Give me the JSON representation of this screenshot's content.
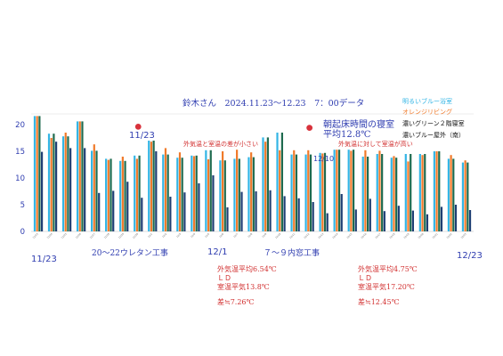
{
  "chart_data": {
    "type": "bar",
    "title": "鈴木さん　2024.11.23～12.23　7：00データ",
    "ylim": [
      0,
      22
    ],
    "yticks": [
      0,
      5,
      10,
      15,
      20
    ],
    "legend": [
      {
        "label": "明るいブルー浴室",
        "color": "#33b5e5"
      },
      {
        "label": "オレンジリビング",
        "color": "#f07a2a"
      },
      {
        "label": "濃いグリーン２階寝室",
        "color": "#1f6b4f"
      },
      {
        "label": "濃いブルー屋外（南）",
        "color": "#1f3f74"
      }
    ],
    "categories": [
      "11/23",
      "11/24",
      "11/25",
      "11/26",
      "11/27",
      "11/28",
      "11/29",
      "11/30",
      "12/1",
      "12/2",
      "12/3",
      "12/4",
      "12/5",
      "12/6",
      "12/7",
      "12/8",
      "12/9",
      "12/10",
      "12/11",
      "12/12",
      "12/13",
      "12/14",
      "12/15",
      "12/16",
      "12/17",
      "12/18",
      "12/19",
      "12/20",
      "12/21",
      "12/22",
      "12/23"
    ],
    "series": [
      {
        "name": "浴室",
        "color": "#33b5e5",
        "values": [
          21.6,
          18.3,
          17.8,
          20.6,
          15.1,
          13.6,
          13.2,
          14.2,
          17.0,
          14.4,
          13.8,
          14.2,
          15.2,
          13.3,
          13.6,
          13.9,
          17.6,
          18.5,
          14.4,
          14.4,
          14.7,
          15.3,
          15.3,
          14.0,
          14.5,
          13.8,
          14.5,
          14.5,
          15.0,
          13.6,
          12.9
        ]
      },
      {
        "name": "リビング",
        "color": "#f07a2a",
        "values": [
          21.6,
          17.5,
          18.5,
          20.6,
          16.3,
          13.4,
          14.0,
          13.6,
          16.8,
          15.6,
          14.8,
          14.1,
          13.5,
          15.0,
          15.3,
          14.8,
          16.8,
          15.2,
          15.2,
          15.2,
          14.6,
          15.3,
          15.1,
          15.2,
          15.1,
          14.1,
          13.1,
          14.3,
          15.0,
          14.3,
          13.3
        ]
      },
      {
        "name": "２階寝室",
        "color": "#1f6b4f",
        "values": [
          21.6,
          18.3,
          17.8,
          20.6,
          15.1,
          13.6,
          13.2,
          14.2,
          17.0,
          14.4,
          13.8,
          14.2,
          15.2,
          13.3,
          13.6,
          13.9,
          17.6,
          18.5,
          14.4,
          14.4,
          14.7,
          15.3,
          15.3,
          14.0,
          14.5,
          13.8,
          14.5,
          14.5,
          15.0,
          13.6,
          12.9
        ]
      },
      {
        "name": "屋外（南）",
        "color": "#1f3f74",
        "values": [
          14.9,
          16.8,
          15.6,
          15.6,
          7.2,
          7.6,
          9.3,
          6.3,
          15.0,
          6.5,
          7.3,
          9.0,
          10.5,
          4.5,
          7.4,
          7.5,
          7.7,
          6.6,
          6.2,
          5.5,
          3.4,
          7.0,
          4.1,
          6.1,
          3.8,
          4.8,
          3.9,
          3.2,
          4.6,
          5.0,
          4.0
        ]
      }
    ],
    "dots": [
      {
        "category": "11/30",
        "value": 19.6
      },
      {
        "category": "12/12",
        "value": 19.4
      }
    ],
    "annotations": {
      "a1123": "11/23",
      "dot1_note": "外気温と室温の差が小さい",
      "d1210": "12/10",
      "dot2_note": "外気温に対して室温が高い",
      "bed_line1": "朝起床時間の寝室",
      "bed_line2": "平均12.8℃",
      "x_start": "11/23",
      "x_mid": "12/1",
      "x_end": "12/23",
      "work1": "20～22ウレタン工事",
      "work2": "７～９内窓工事",
      "stats1_line1": "外気温平均6.54℃",
      "stats1_line2": "ＬＤ",
      "stats1_line3": "室温平気13.8℃",
      "stats1_line4": "差≒7.26℃",
      "stats2_line1": "外気温平均4.75℃",
      "stats2_line2": "ＬＤ",
      "stats2_line3": "室温平気17.20℃",
      "stats2_line4": "差≒12.45℃"
    }
  }
}
